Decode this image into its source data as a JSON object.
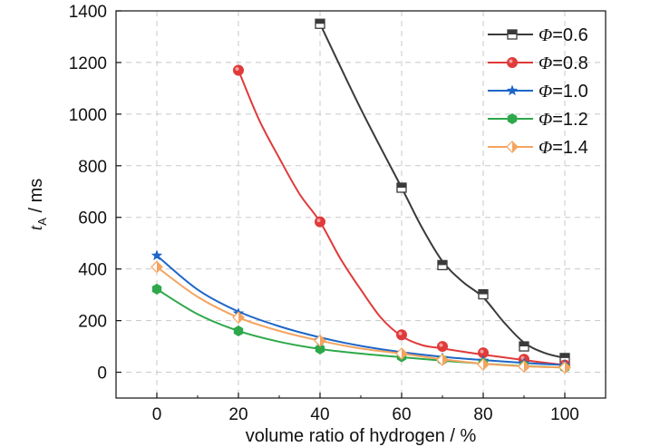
{
  "chart_data": {
    "type": "line",
    "xlabel": "volume ratio of hydrogen / %",
    "ylabel_main": "t",
    "ylabel_sub": "A",
    "ylabel_unit": " / ms",
    "xlim": [
      -10,
      110
    ],
    "ylim": [
      -100,
      1400
    ],
    "xticks": [
      0,
      20,
      40,
      60,
      80,
      100
    ],
    "yticks": [
      0,
      200,
      400,
      600,
      800,
      1000,
      1200,
      1400
    ],
    "grid": true,
    "legend_position": "top-right",
    "series": [
      {
        "name_symbol": "Φ",
        "name_value": "=0.6",
        "color": "#3a3a3a",
        "marker": "square",
        "points": [
          [
            40,
            1350
          ],
          [
            60,
            715
          ],
          [
            70,
            415
          ],
          [
            80,
            302
          ],
          [
            90,
            100
          ],
          [
            100,
            55
          ]
        ],
        "curve": [
          [
            40,
            1350
          ],
          [
            50,
            1020
          ],
          [
            60,
            715
          ],
          [
            65,
            560
          ],
          [
            70,
            430
          ],
          [
            75,
            350
          ],
          [
            80,
            290
          ],
          [
            85,
            195
          ],
          [
            90,
            115
          ],
          [
            95,
            75
          ],
          [
            100,
            55
          ]
        ]
      },
      {
        "name_symbol": "Φ",
        "name_value": "=0.8",
        "color": "#e03a3a",
        "marker": "circle",
        "points": [
          [
            20,
            1170
          ],
          [
            40,
            583
          ],
          [
            60,
            145
          ],
          [
            70,
            100
          ],
          [
            80,
            75
          ],
          [
            90,
            50
          ],
          [
            100,
            28
          ]
        ],
        "curve": [
          [
            20,
            1170
          ],
          [
            25,
            980
          ],
          [
            30,
            830
          ],
          [
            35,
            690
          ],
          [
            40,
            583
          ],
          [
            45,
            440
          ],
          [
            50,
            320
          ],
          [
            55,
            210
          ],
          [
            60,
            140
          ],
          [
            65,
            105
          ],
          [
            70,
            92
          ],
          [
            80,
            68
          ],
          [
            90,
            47
          ],
          [
            100,
            28
          ]
        ]
      },
      {
        "name_symbol": "Φ",
        "name_value": "=1.0",
        "color": "#1e66c8",
        "marker": "star",
        "points": [
          [
            0,
            452
          ],
          [
            20,
            228
          ],
          [
            40,
            125
          ],
          [
            60,
            68
          ],
          [
            70,
            55
          ],
          [
            80,
            45
          ],
          [
            90,
            35
          ],
          [
            100,
            28
          ]
        ],
        "curve": [
          [
            0,
            452
          ],
          [
            10,
            320
          ],
          [
            20,
            235
          ],
          [
            30,
            178
          ],
          [
            40,
            135
          ],
          [
            50,
            102
          ],
          [
            60,
            78
          ],
          [
            70,
            60
          ],
          [
            80,
            47
          ],
          [
            90,
            36
          ],
          [
            100,
            28
          ]
        ]
      },
      {
        "name_symbol": "Φ",
        "name_value": "=1.2",
        "color": "#2ea84a",
        "marker": "hexagon",
        "points": [
          [
            0,
            322
          ],
          [
            20,
            160
          ],
          [
            40,
            90
          ],
          [
            60,
            60
          ],
          [
            70,
            48
          ],
          [
            80,
            35
          ],
          [
            90,
            25
          ],
          [
            100,
            18
          ]
        ],
        "curve": [
          [
            0,
            322
          ],
          [
            10,
            225
          ],
          [
            20,
            160
          ],
          [
            30,
            118
          ],
          [
            40,
            90
          ],
          [
            50,
            72
          ],
          [
            60,
            58
          ],
          [
            70,
            45
          ],
          [
            80,
            33
          ],
          [
            90,
            24
          ],
          [
            100,
            18
          ]
        ]
      },
      {
        "name_symbol": "Φ",
        "name_value": "=1.4",
        "color": "#f4a460",
        "marker": "half-diamond",
        "points": [
          [
            0,
            408
          ],
          [
            20,
            212
          ],
          [
            40,
            122
          ],
          [
            60,
            72
          ],
          [
            70,
            48
          ],
          [
            80,
            30
          ],
          [
            90,
            22
          ],
          [
            100,
            18
          ]
        ],
        "curve": [
          [
            0,
            408
          ],
          [
            10,
            292
          ],
          [
            20,
            212
          ],
          [
            30,
            160
          ],
          [
            40,
            122
          ],
          [
            50,
            92
          ],
          [
            60,
            72
          ],
          [
            70,
            50
          ],
          [
            80,
            33
          ],
          [
            90,
            23
          ],
          [
            100,
            18
          ]
        ]
      }
    ]
  }
}
